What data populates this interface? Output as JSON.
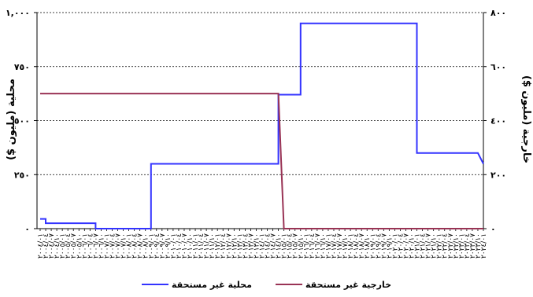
{
  "chart_data": {
    "type": "line",
    "ylabel_left": "محلية (مليون $)",
    "ylabel_right": "خارجية (مليون $)",
    "ylim_left": [
      0,
      1000
    ],
    "ylim_right": [
      0,
      800
    ],
    "yticks_left": [
      "٠",
      "٢٥٠",
      "٥٠٠",
      "٧٥٠",
      "١,٠٠٠"
    ],
    "yticks_right": [
      "٠",
      "٢٠٠",
      "٤٠٠",
      "٦٠٠",
      "٨٠٠"
    ],
    "x_tick_labels": [
      "٢٠٠٤/٠١",
      "٢٠٠٤/٠٤",
      "٢٠٠٤/٠٧",
      "٢٠٠٤/١٠",
      "٢٠٠٥/٠١",
      "٢٠٠٥/٠٤",
      "٢٠٠٥/٠٧",
      "٢٠٠٥/١٠",
      "٢٠٠٦/٠١",
      "٢٠٠٦/٠٤",
      "٢٠٠٦/٠٧",
      "٢٠٠٦/١٠",
      "٢٠٠٧/٠١",
      "٢٠٠٧/٠٤",
      "٢٠٠٧/٠٧",
      "٢٠٠٧/١٠",
      "٢٠٠٨/٠١",
      "٢٠٠٨/٠٤",
      "٢٠٠٨/٠٧",
      "٢٠٠٨/١٠",
      "٢٠٠٩/٠١",
      "٢٠٠٩/٠٤",
      "٢٠٠٩/٠٧",
      "٢٠٠٩/١٠",
      "٢٠١٠/٠١",
      "٢٠١٠/٠٤",
      "٢٠١٠/٠٧",
      "٢٠١٠/١٠",
      "٢٠١١/٠١",
      "٢٠١١/٠٤",
      "٢٠١١/٠٧",
      "٢٠١١/١٠",
      "٢٠١٢/٠١",
      "٢٠١٢/٠٤",
      "٢٠١٢/٠٧",
      "٢٠١٢/١٠",
      "٢٠١٣/٠١",
      "٢٠١٣/٠٤",
      "٢٠١٣/٠٧",
      "٢٠١٣/١٠",
      "٢٠١٤/٠١",
      "٢٠١٤/٠٤",
      "٢٠١٤/٠٧",
      "٢٠١٤/١٠",
      "٢٠١٥/٠١",
      "٢٠١٥/٠٤",
      "٢٠١٥/٠٧",
      "٢٠١٥/١٠",
      "٢٠١٦/٠١",
      "٢٠١٦/٠٤",
      "٢٠١٦/٠٧",
      "٢٠١٦/١٠",
      "٢٠١٧/٠١",
      "٢٠١٧/٠٤",
      "٢٠١٧/٠٧",
      "٢٠١٧/١٠",
      "٢٠١٨/٠١",
      "٢٠١٨/٠٤",
      "٢٠١٨/٠٧",
      "٢٠١٨/١٠",
      "٢٠١٩/٠١",
      "٢٠١٩/٠٤",
      "٢٠١٩/٠٧",
      "٢٠١٩/١٠",
      "٢٠٢٠/٠١",
      "٢٠٢٠/٠٤",
      "٢٠٢٠/٠٧",
      "٢٠٢٠/١٠",
      "٢٠٢١/٠١",
      "٢٠٢١/٠٤",
      "٢٠٢١/٠٧",
      "٢٠٢١/١٠",
      "٢٠٢٢/٠١",
      "٢٠٢٢/٠٤",
      "٢٠٢٢/٠٧",
      "٢٠٢٢/١٠",
      "٢٠٢٣/٠١",
      "٢٠٢٣/٠٤",
      "٢٠٢٣/٠٧",
      "٢٠٢٣/١٠",
      "٢٠٢٤/٠١"
    ],
    "series": [
      {
        "name": "محلية غير مستحقة",
        "axis": "left",
        "color": "#3333ff",
        "x": [
          0,
          1,
          1,
          10,
          10,
          20,
          20,
          43,
          43,
          47,
          47,
          68,
          68,
          79,
          79,
          80
        ],
        "values": [
          45,
          45,
          25,
          25,
          0,
          0,
          300,
          300,
          620,
          620,
          950,
          950,
          350,
          350,
          350,
          300
        ]
      },
      {
        "name": "خارجية غير مستحقة",
        "axis": "right",
        "color": "#993355",
        "x": [
          0,
          43,
          44,
          80
        ],
        "values": [
          500,
          500,
          0,
          0
        ]
      }
    ],
    "grid": "horizontal dashed",
    "legend": "bottom"
  }
}
